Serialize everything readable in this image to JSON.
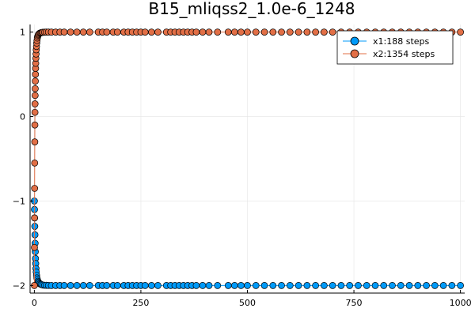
{
  "chart_data": {
    "type": "scatter",
    "title": "B15_mliqss2_1.0e-6_1248",
    "xlabel": "",
    "ylabel": "",
    "xlim": [
      -10,
      1010
    ],
    "ylim": [
      -2.09,
      1.09
    ],
    "xticks": [
      0,
      250,
      500,
      750,
      1000
    ],
    "xtick_labels": [
      "0",
      "250",
      "500",
      "750",
      "1000"
    ],
    "yticks": [
      1,
      0,
      -1,
      -2
    ],
    "ytick_labels": [
      "1",
      "0",
      "−1",
      "−2"
    ],
    "grid": true,
    "legend_position": "top-right",
    "series": [
      {
        "name": "x1:188 steps",
        "color": "#009af9",
        "x": [
          0,
          0.3,
          0.6,
          1.0,
          1.4,
          1.8,
          2.2,
          2.7,
          3.2,
          3.8,
          4.4,
          5.2,
          6.0,
          7.0,
          8.2,
          9.6,
          11,
          13,
          15,
          17,
          20,
          24,
          28,
          33,
          40,
          50,
          60,
          70,
          85,
          100,
          115,
          130,
          150,
          160,
          170,
          185,
          195,
          210,
          220,
          230,
          240,
          250,
          260,
          275,
          290,
          310,
          320,
          330,
          340,
          350,
          360,
          370,
          380,
          395,
          410,
          430,
          455,
          470,
          485,
          500,
          520,
          540,
          560,
          580,
          600,
          620,
          640,
          660,
          680,
          700,
          720,
          740,
          760,
          780,
          800,
          820,
          840,
          860,
          880,
          900,
          920,
          940,
          960,
          980,
          1000
        ],
        "y": [
          -1.0,
          -1.1,
          -1.2,
          -1.3,
          -1.4,
          -1.5,
          -1.6,
          -1.68,
          -1.74,
          -1.8,
          -1.84,
          -1.88,
          -1.91,
          -1.93,
          -1.95,
          -1.96,
          -1.97,
          -1.98,
          -1.985,
          -1.99,
          -1.995,
          -1.997,
          -1.998,
          -1.999,
          -2.0,
          -2.0,
          -2.0,
          -2.0,
          -2.0,
          -2.0,
          -2.0,
          -2.0,
          -2.0,
          -2.0,
          -2.0,
          -2.0,
          -2.0,
          -2.0,
          -2.0,
          -2.0,
          -2.0,
          -2.0,
          -2.0,
          -2.0,
          -2.0,
          -2.0,
          -2.0,
          -2.0,
          -2.0,
          -2.0,
          -2.0,
          -2.0,
          -2.0,
          -2.0,
          -2.0,
          -2.0,
          -2.0,
          -2.0,
          -2.0,
          -2.0,
          -2.0,
          -2.0,
          -2.0,
          -2.0,
          -2.0,
          -2.0,
          -2.0,
          -2.0,
          -2.0,
          -2.0,
          -2.0,
          -2.0,
          -2.0,
          -2.0,
          -2.0,
          -2.0,
          -2.0,
          -2.0,
          -2.0,
          -2.0,
          -2.0,
          -2.0,
          -2.0,
          -2.0,
          -2.0
        ]
      },
      {
        "name": "x2:1354 steps",
        "color": "#e26f46",
        "x": [
          0,
          0.2,
          0.4,
          0.6,
          0.8,
          1.0,
          1.2,
          1.4,
          1.6,
          1.8,
          2.0,
          2.3,
          2.6,
          2.9,
          3.2,
          3.6,
          4.0,
          4.5,
          5.0,
          5.6,
          6.2,
          7.0,
          8.0,
          9.0,
          10,
          12,
          14,
          16,
          18,
          20,
          24,
          28,
          33,
          40,
          50,
          60,
          70,
          85,
          100,
          115,
          130,
          150,
          160,
          170,
          185,
          195,
          210,
          220,
          230,
          240,
          250,
          260,
          275,
          290,
          310,
          320,
          330,
          340,
          350,
          360,
          370,
          380,
          395,
          410,
          430,
          455,
          470,
          485,
          500,
          520,
          540,
          560,
          580,
          600,
          620,
          640,
          660,
          680,
          700,
          720,
          740,
          760,
          780,
          800,
          820,
          840,
          860,
          880,
          900,
          920,
          940,
          960,
          980,
          1000
        ],
        "y": [
          -2.0,
          -1.55,
          -1.2,
          -0.85,
          -0.55,
          -0.3,
          -0.1,
          0.05,
          0.15,
          0.25,
          0.33,
          0.42,
          0.5,
          0.57,
          0.63,
          0.69,
          0.74,
          0.79,
          0.83,
          0.87,
          0.9,
          0.93,
          0.95,
          0.965,
          0.975,
          0.985,
          0.99,
          0.993,
          0.996,
          0.998,
          0.999,
          1.0,
          1.0,
          1.0,
          1.0,
          1.0,
          1.0,
          1.0,
          1.0,
          1.0,
          1.0,
          1.0,
          1.0,
          1.0,
          1.0,
          1.0,
          1.0,
          1.0,
          1.0,
          1.0,
          1.0,
          1.0,
          1.0,
          1.0,
          1.0,
          1.0,
          1.0,
          1.0,
          1.0,
          1.0,
          1.0,
          1.0,
          1.0,
          1.0,
          1.0,
          1.0,
          1.0,
          1.0,
          1.0,
          1.0,
          1.0,
          1.0,
          1.0,
          1.0,
          1.0,
          1.0,
          1.0,
          1.0,
          1.0,
          1.0,
          1.0,
          1.0,
          1.0,
          1.0,
          1.0,
          1.0,
          1.0,
          1.0,
          1.0,
          1.0,
          1.0,
          1.0,
          1.0,
          1.0
        ]
      }
    ]
  }
}
